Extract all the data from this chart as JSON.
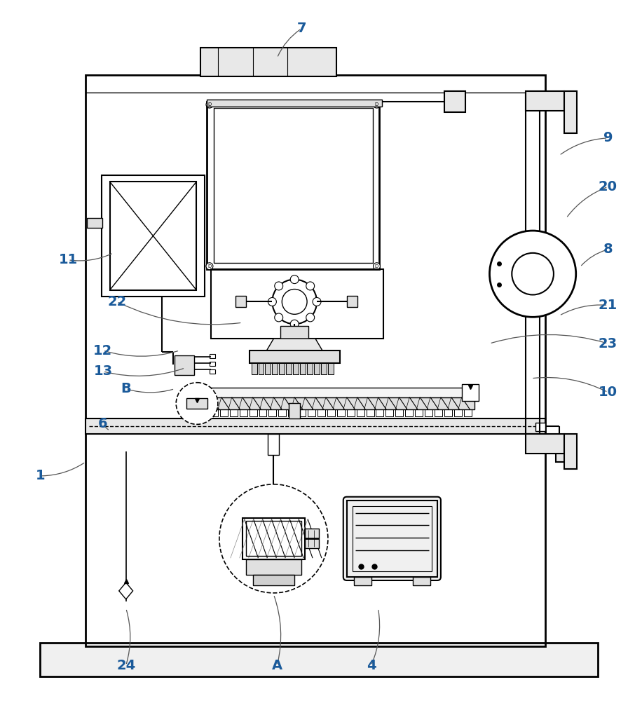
{
  "bg_color": "#ffffff",
  "lc": "#000000",
  "label_color": "#1a5a9a",
  "fig_width": 9.06,
  "fig_height": 10.0,
  "dpi": 100,
  "leaders": [
    [
      "7",
      430,
      38,
      395,
      80
    ],
    [
      "9",
      870,
      195,
      800,
      220
    ],
    [
      "20",
      870,
      265,
      810,
      310
    ],
    [
      "8",
      870,
      355,
      830,
      380
    ],
    [
      "21",
      870,
      435,
      800,
      450
    ],
    [
      "23",
      870,
      490,
      700,
      490
    ],
    [
      "10",
      870,
      560,
      760,
      540
    ],
    [
      "11",
      95,
      370,
      160,
      360
    ],
    [
      "22",
      165,
      430,
      345,
      460
    ],
    [
      "12",
      145,
      500,
      255,
      500
    ],
    [
      "13",
      145,
      530,
      263,
      525
    ],
    [
      "B",
      178,
      555,
      248,
      555
    ],
    [
      "6",
      145,
      605,
      155,
      615
    ],
    [
      "1",
      55,
      680,
      120,
      660
    ],
    [
      "24",
      178,
      952,
      178,
      870
    ],
    [
      "A",
      395,
      952,
      390,
      850
    ],
    [
      "4",
      530,
      952,
      540,
      870
    ]
  ]
}
